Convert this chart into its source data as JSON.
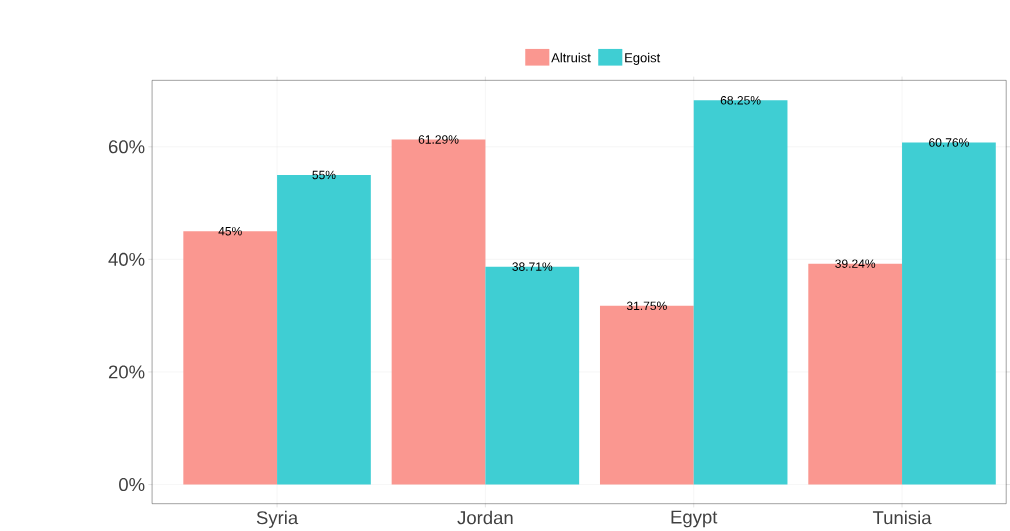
{
  "chart_data": {
    "type": "bar",
    "categories": [
      "Syria",
      "Jordan",
      "Egypt",
      "Tunisia"
    ],
    "series": [
      {
        "name": "Altruist",
        "color": "#fa9790",
        "values": [
          45,
          61.29,
          31.75,
          39.24
        ],
        "value_labels": [
          "45%",
          "61.29%",
          "31.75%",
          "39.24%"
        ]
      },
      {
        "name": "Egoist",
        "color": "#3fced3",
        "values": [
          55,
          38.71,
          68.25,
          60.76
        ],
        "value_labels": [
          "55%",
          "38.71%",
          "68.25%",
          "60.76%"
        ]
      }
    ],
    "ylim": [
      -3.4,
      71.8
    ],
    "yticks": [
      {
        "value": 0,
        "label": "0%"
      },
      {
        "value": 20,
        "label": "20%"
      },
      {
        "value": 40,
        "label": "40%"
      },
      {
        "value": 60,
        "label": "60%"
      }
    ],
    "grid": true,
    "legend": "top"
  }
}
